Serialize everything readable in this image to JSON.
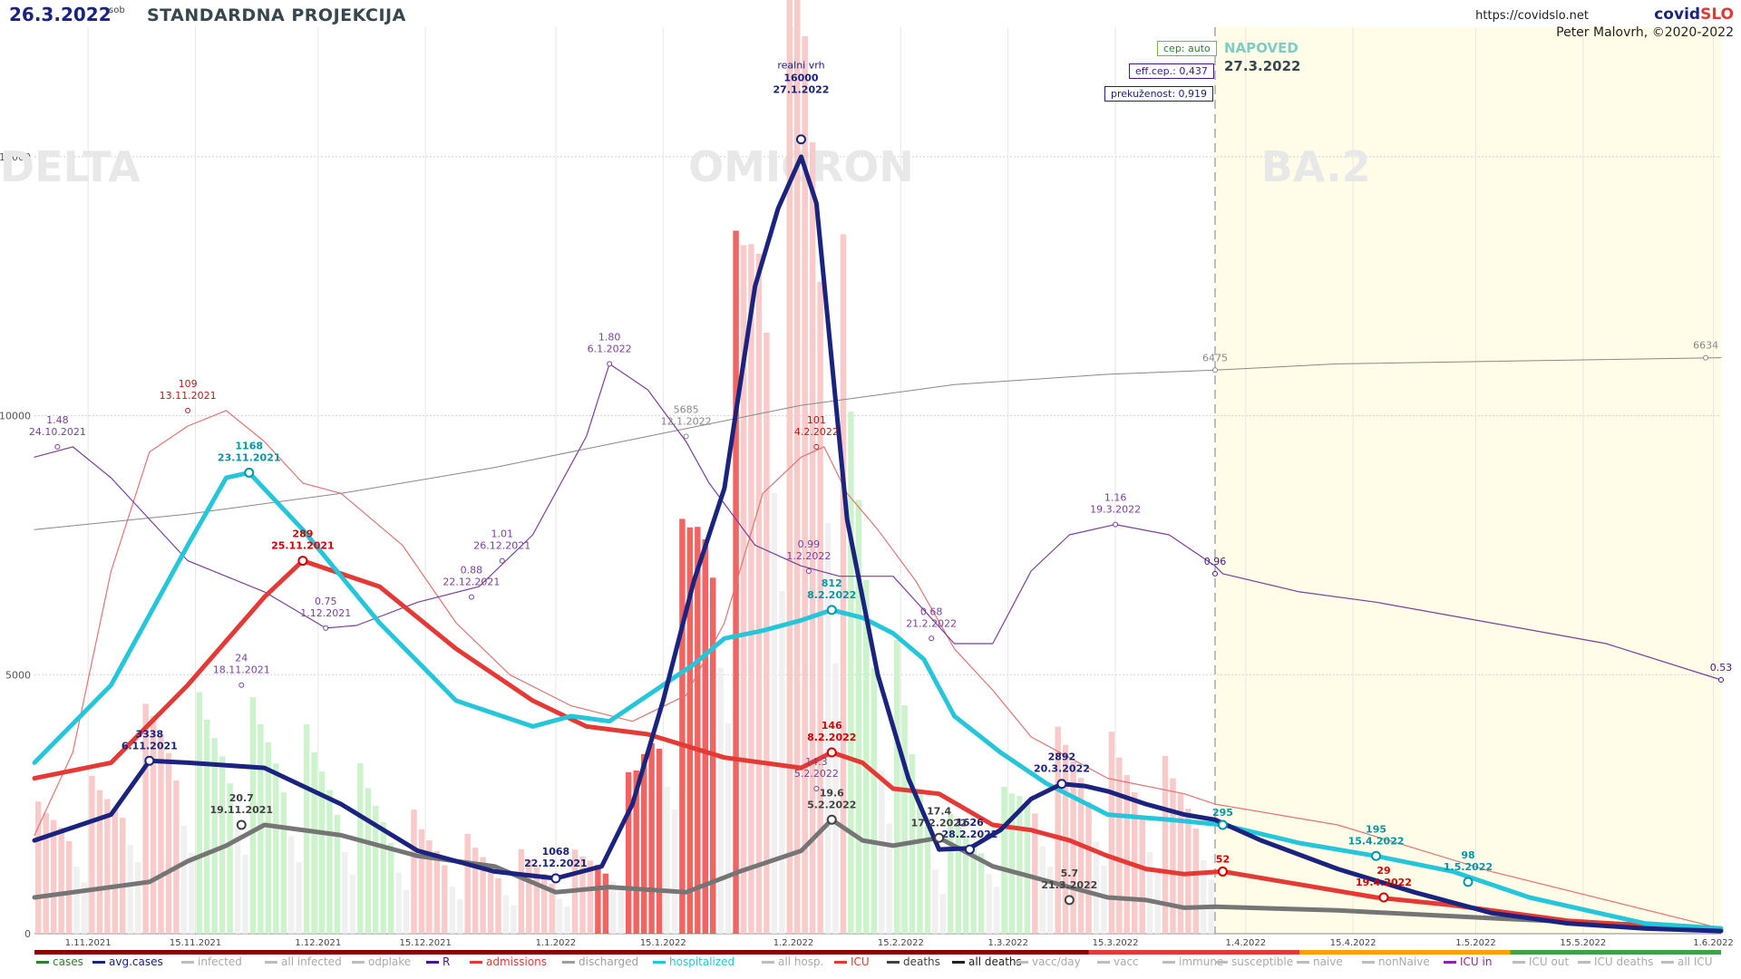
{
  "header": {
    "date": "26.3.2022",
    "day": "sob",
    "title": "STANDARDNA PROJEKCIJA",
    "url": "https://covidslo.net",
    "brand_a": "covid",
    "brand_b": "SLO",
    "author": "Peter Malovrh, ©2020-2022"
  },
  "boxes": {
    "cep": "cep: auto",
    "eff": "eff.cep.: 0,437",
    "prek": "prekuženost: 0,919"
  },
  "forecast": {
    "label": "NAPOVED",
    "date": "27.3.2022"
  },
  "colors": {
    "avg_cases": "#1a237e",
    "hospitalized": "#26c6da",
    "icu": "#e53935",
    "deaths": "#757575",
    "r": "#7b3fa0",
    "admissions": "#e57373",
    "immune": "#888888",
    "forecast_bg": "#fffde7"
  },
  "chart_data": {
    "type": "bar",
    "title": "STANDARDNA PROJEKCIJA",
    "y_ticks": [
      "0",
      "5000",
      "10000",
      "15000"
    ],
    "ylim": [
      0,
      17500
    ],
    "x_ticks": [
      "1.11.2021",
      "15.11.2021",
      "1.12.2021",
      "15.12.2021",
      "1.1.2022",
      "15.1.2022",
      "1.2.2022",
      "15.2.2022",
      "1.3.2022",
      "15.3.2022",
      "1.4.2022",
      "15.4.2022",
      "1.5.2022",
      "15.5.2022",
      "1.6.2022"
    ],
    "xlim_days": [
      0,
      220
    ],
    "forecast_start_day": 154,
    "variants": [
      "DELTA",
      "OMICRON",
      "BA.2"
    ],
    "series": [
      {
        "name": "avg.cases",
        "x": [
          0,
          10,
          15,
          20,
          30,
          40,
          50,
          60,
          68,
          74,
          78,
          82,
          86,
          90,
          94,
          97,
          100,
          102,
          106,
          110,
          114,
          118,
          122,
          126,
          130,
          134,
          137,
          140,
          145,
          150,
          154,
          160,
          170,
          180,
          190,
          200,
          210,
          220
        ],
        "y": [
          1800,
          2300,
          3338,
          3300,
          3200,
          2500,
          1600,
          1200,
          1068,
          1300,
          2500,
          4500,
          6800,
          8600,
          12500,
          14000,
          15000,
          14100,
          8000,
          5000,
          3000,
          1626,
          1650,
          2000,
          2600,
          2892,
          2850,
          2750,
          2500,
          2300,
          2200,
          1800,
          1250,
          800,
          400,
          200,
          100,
          50
        ]
      },
      {
        "name": "hospitalized",
        "x": [
          0,
          10,
          20,
          25,
          28,
          35,
          45,
          55,
          65,
          70,
          75,
          80,
          86,
          90,
          95,
          100,
          104,
          108,
          112,
          116,
          120,
          126,
          132,
          140,
          148,
          155,
          165,
          175,
          185,
          195,
          210,
          220
        ],
        "y": [
          3300,
          4800,
          7500,
          8800,
          8900,
          7800,
          6000,
          4500,
          4000,
          4200,
          4100,
          4600,
          5200,
          5700,
          5850,
          6050,
          6250,
          6100,
          5800,
          5300,
          4200,
          3500,
          2900,
          2300,
          2200,
          2100,
          1750,
          1500,
          1200,
          700,
          200,
          100
        ]
      },
      {
        "name": "ICU",
        "x": [
          0,
          10,
          20,
          30,
          35,
          45,
          55,
          65,
          72,
          80,
          90,
          100,
          104,
          108,
          112,
          118,
          125,
          130,
          135,
          140,
          145,
          150,
          155,
          165,
          175,
          185,
          200,
          220
        ],
        "y": [
          3000,
          3300,
          4800,
          6500,
          7200,
          6700,
          5500,
          4500,
          4000,
          3850,
          3400,
          3200,
          3500,
          3300,
          2800,
          2700,
          2100,
          2000,
          1800,
          1500,
          1250,
          1150,
          1200,
          950,
          700,
          550,
          250,
          60
        ]
      },
      {
        "name": "deaths",
        "x": [
          0,
          10,
          15,
          20,
          25,
          30,
          40,
          50,
          60,
          68,
          75,
          85,
          92,
          100,
          104,
          108,
          112,
          118,
          125,
          130,
          135,
          140,
          145,
          150,
          154,
          170,
          190,
          220
        ],
        "y": [
          700,
          900,
          1000,
          1400,
          1700,
          2100,
          1900,
          1500,
          1300,
          800,
          900,
          800,
          1200,
          1600,
          2200,
          1800,
          1700,
          1850,
          1300,
          1100,
          900,
          700,
          650,
          500,
          520,
          450,
          300,
          100
        ]
      },
      {
        "name": "R",
        "x": [
          0,
          5,
          10,
          20,
          30,
          38,
          42,
          50,
          58,
          65,
          72,
          75,
          80,
          85,
          88,
          94,
          100,
          105,
          112,
          120,
          125,
          130,
          135,
          141,
          148,
          154,
          155,
          165,
          175,
          190,
          205,
          220
        ],
        "y": [
          9200,
          9400,
          8800,
          7200,
          6600,
          5900,
          5950,
          6400,
          6700,
          7700,
          9600,
          11000,
          10500,
          9500,
          8700,
          7500,
          7100,
          6900,
          6900,
          5600,
          5600,
          7000,
          7700,
          7900,
          7700,
          7100,
          6950,
          6600,
          6400,
          6000,
          5600,
          4900
        ]
      },
      {
        "name": "admissions",
        "x": [
          0,
          5,
          10,
          15,
          20,
          25,
          30,
          35,
          40,
          48,
          55,
          62,
          70,
          78,
          85,
          90,
          95,
          100,
          103,
          106,
          110,
          115,
          120,
          125,
          130,
          140,
          150,
          154,
          170,
          190,
          220
        ],
        "y": [
          1900,
          3500,
          7000,
          9300,
          9800,
          10100,
          9500,
          8700,
          8500,
          7500,
          6000,
          5000,
          4400,
          4100,
          4600,
          6000,
          8500,
          9200,
          9400,
          8500,
          7800,
          6800,
          5500,
          4700,
          3800,
          3000,
          2700,
          2500,
          2100,
          1200,
          100
        ]
      },
      {
        "name": "immune",
        "x": [
          0,
          20,
          40,
          60,
          80,
          100,
          120,
          140,
          154,
          170,
          190,
          220
        ],
        "y": [
          7800,
          8100,
          8500,
          9000,
          9600,
          10200,
          10600,
          10800,
          10880,
          11000,
          11050,
          11120
        ]
      }
    ],
    "annotations": [
      {
        "series": "avg.cases",
        "value": "3338",
        "date": "6.11.2021"
      },
      {
        "series": "avg.cases",
        "value": "1068",
        "date": "22.12.2021"
      },
      {
        "series": "avg.cases",
        "value": "16000",
        "date": "27.1.2022",
        "label": "realni vrh"
      },
      {
        "series": "avg.cases",
        "value": "1626",
        "date": "28.2.2022"
      },
      {
        "series": "avg.cases",
        "value": "2892",
        "date": "20.3.2022"
      },
      {
        "series": "hospitalized",
        "value": "1168",
        "date": "23.11.2021"
      },
      {
        "series": "hospitalized",
        "value": "812",
        "date": "8.2.2022"
      },
      {
        "series": "hospitalized",
        "value": "295",
        "date": ""
      },
      {
        "series": "hospitalized",
        "value": "195",
        "date": "15.4.2022"
      },
      {
        "series": "hospitalized",
        "value": "98",
        "date": "1.5.2022"
      },
      {
        "series": "ICU",
        "value": "289",
        "date": "25.11.2021"
      },
      {
        "series": "ICU",
        "value": "146",
        "date": "8.2.2022"
      },
      {
        "series": "ICU",
        "value": "52",
        "date": ""
      },
      {
        "series": "ICU",
        "value": "29",
        "date": "19.4.2022"
      },
      {
        "series": "admissions",
        "value": "109",
        "date": "13.11.2021"
      },
      {
        "series": "admissions",
        "value": "101",
        "date": "4.2.2022"
      },
      {
        "series": "R",
        "value": "1.48",
        "date": "24.10.2021"
      },
      {
        "series": "R",
        "value": "0.75",
        "date": "1.12.2021"
      },
      {
        "series": "R",
        "value": "0.88",
        "date": "22.12.2021"
      },
      {
        "series": "R",
        "value": "1.01",
        "date": "26.12.2021"
      },
      {
        "series": "R",
        "value": "1.80",
        "date": "6.1.2022"
      },
      {
        "series": "R",
        "value": "0.99",
        "date": "1.2.2022"
      },
      {
        "series": "R",
        "value": "0.68",
        "date": "21.2.2022"
      },
      {
        "series": "R",
        "value": "1.16",
        "date": "19.3.2022"
      },
      {
        "series": "R",
        "value": "0.96",
        "date": ""
      },
      {
        "series": "R",
        "value": "0.53",
        "date": ""
      },
      {
        "series": "R",
        "value": "24",
        "date": "18.11.2021"
      },
      {
        "series": "R",
        "value": "14.3",
        "date": "5.2.2022"
      },
      {
        "series": "deaths",
        "value": "20.7",
        "date": "19.11.2021"
      },
      {
        "series": "deaths",
        "value": "19.6",
        "date": "5.2.2022"
      },
      {
        "series": "deaths",
        "value": "17.4",
        "date": "17.2.2022"
      },
      {
        "series": "deaths",
        "value": "5.7",
        "date": "21.3.2022"
      },
      {
        "series": "immune",
        "value": "5685",
        "date": "12.1.2022"
      },
      {
        "series": "immune",
        "value": "6475",
        "date": ""
      },
      {
        "series": "immune",
        "value": "6634",
        "date": ""
      }
    ],
    "grid": true
  },
  "legend": [
    {
      "label": "cases",
      "color": "#2e7d32"
    },
    {
      "label": "avg.cases",
      "color": "#1a237e"
    },
    {
      "label": "infected",
      "color": "#bdbdbd"
    },
    {
      "label": "all infected",
      "color": "#bdbdbd"
    },
    {
      "label": "odplake",
      "color": "#bdbdbd"
    },
    {
      "label": "R",
      "color": "#4a148c"
    },
    {
      "label": "admissions",
      "color": "#e53935"
    },
    {
      "label": "discharged",
      "color": "#9e9e9e"
    },
    {
      "label": "hospitalized",
      "color": "#26c6da"
    },
    {
      "label": "all hosp.",
      "color": "#bdbdbd"
    },
    {
      "label": "ICU",
      "color": "#e53935"
    },
    {
      "label": "deaths",
      "color": "#424242"
    },
    {
      "label": "all deaths",
      "color": "#212121"
    },
    {
      "label": "vacc/day",
      "color": "#bdbdbd"
    },
    {
      "label": "vacc",
      "color": "#bdbdbd"
    },
    {
      "label": "immune",
      "color": "#bdbdbd"
    },
    {
      "label": "susceptible",
      "color": "#bdbdbd"
    },
    {
      "label": "naive",
      "color": "#bdbdbd"
    },
    {
      "label": "nonNaive",
      "color": "#bdbdbd"
    },
    {
      "label": "ICU in",
      "color": "#8e24aa"
    },
    {
      "label": "ICU out",
      "color": "#bdbdbd"
    },
    {
      "label": "ICU deaths",
      "color": "#bdbdbd"
    },
    {
      "label": "all ICU",
      "color": "#bdbdbd"
    }
  ]
}
